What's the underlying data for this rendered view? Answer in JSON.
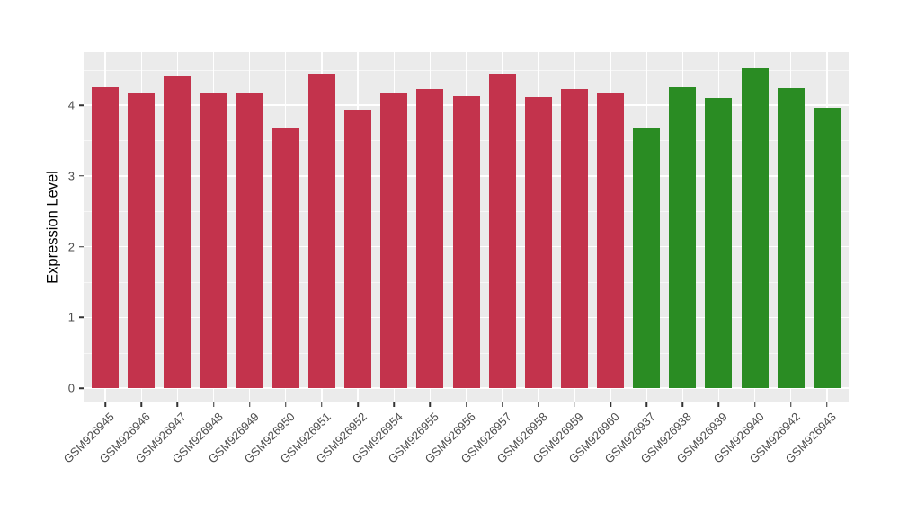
{
  "figure": {
    "background": "#FFFFFF",
    "panel_background": "#EBEBEB",
    "gridline_color": "#FFFFFF",
    "tick_color": "#333333",
    "tick_label_color": "#4D4D4D"
  },
  "chart_data": {
    "type": "bar",
    "title": "",
    "xlabel": "",
    "ylabel": "Expression Level",
    "legend": "none",
    "grid": "on",
    "ylim": [
      -0.2,
      4.75
    ],
    "yticks": [
      0,
      1,
      2,
      3,
      4
    ],
    "ytick_labels": [
      "0",
      "1",
      "2",
      "3",
      "4"
    ],
    "yminor": [
      0.5,
      1.5,
      2.5,
      3.5,
      4.5
    ],
    "categories": [
      "GSM926945",
      "GSM926946",
      "GSM926947",
      "GSM926948",
      "GSM926949",
      "GSM926950",
      "GSM926951",
      "GSM926952",
      "GSM926954",
      "GSM926955",
      "GSM926956",
      "GSM926957",
      "GSM926958",
      "GSM926959",
      "GSM926960",
      "GSM926937",
      "GSM926938",
      "GSM926939",
      "GSM926940",
      "GSM926942",
      "GSM926943"
    ],
    "values": [
      4.25,
      4.17,
      4.41,
      4.17,
      4.17,
      3.68,
      4.44,
      3.94,
      4.17,
      4.23,
      4.13,
      4.44,
      4.11,
      4.23,
      4.17,
      3.68,
      4.26,
      4.1,
      4.52,
      4.24,
      3.96
    ],
    "bar_groups": [
      "group1",
      "group1",
      "group1",
      "group1",
      "group1",
      "group1",
      "group1",
      "group1",
      "group1",
      "group1",
      "group1",
      "group1",
      "group1",
      "group1",
      "group1",
      "group2",
      "group2",
      "group2",
      "group2",
      "group2",
      "group2"
    ],
    "group_colors": {
      "group1": "#C3334C",
      "group2": "#2A8C23"
    }
  }
}
